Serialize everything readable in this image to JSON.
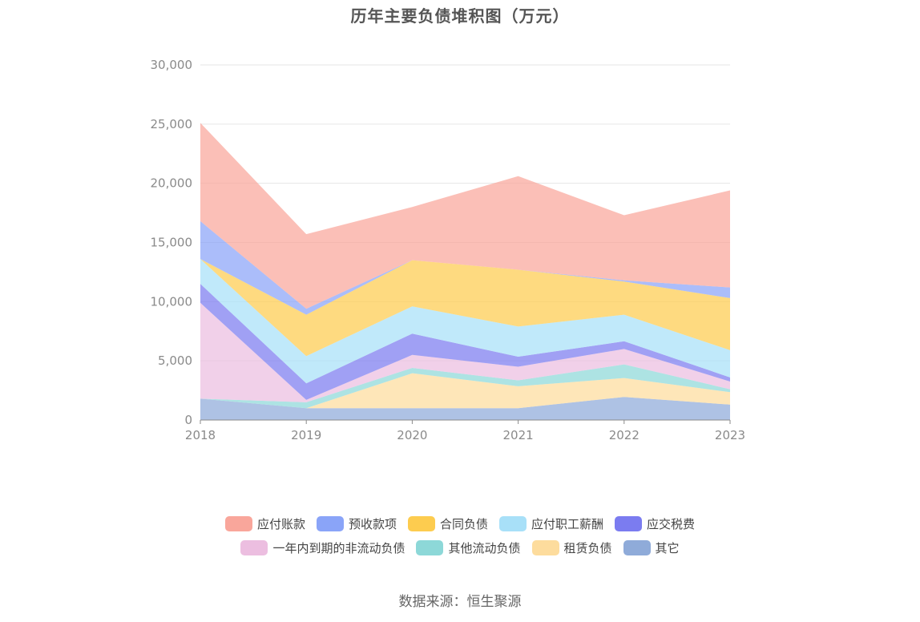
{
  "chart_data": {
    "type": "area",
    "stacked": true,
    "title": "历年主要负债堆积图（万元）",
    "categories": [
      "2018",
      "2019",
      "2020",
      "2021",
      "2022",
      "2023"
    ],
    "ylim": [
      0,
      30000
    ],
    "yticks": [
      0,
      5000,
      10000,
      15000,
      20000,
      25000,
      30000
    ],
    "ytick_labels": [
      "0",
      "5,000",
      "10,000",
      "15,000",
      "20,000",
      "25,000",
      "30,000"
    ],
    "grid": true,
    "legend_position": "bottom",
    "series": [
      {
        "name": "其它",
        "color": "#8fabd9",
        "values": [
          1800,
          1000,
          1000,
          1000,
          1950,
          1300
        ]
      },
      {
        "name": "租赁负债",
        "color": "#fddc9d",
        "values": [
          0,
          0,
          2950,
          1850,
          1600,
          1050
        ]
      },
      {
        "name": "其他流动负债",
        "color": "#8dd8d8",
        "values": [
          0,
          500,
          450,
          500,
          1150,
          250
        ]
      },
      {
        "name": "一年内到期的非流动负债",
        "color": "#ecbee0",
        "values": [
          8100,
          200,
          1100,
          1150,
          1300,
          650
        ]
      },
      {
        "name": "应交税费",
        "color": "#7b7cf0",
        "values": [
          1600,
          1400,
          1800,
          850,
          650,
          350
        ]
      },
      {
        "name": "应付职工薪酬",
        "color": "#a8e0f8",
        "values": [
          2100,
          2300,
          2300,
          2550,
          2250,
          2300
        ]
      },
      {
        "name": "合同负债",
        "color": "#fdcc4f",
        "values": [
          0,
          3500,
          3900,
          4800,
          2800,
          4400
        ]
      },
      {
        "name": "预收款项",
        "color": "#8aa4f8",
        "values": [
          3200,
          500,
          0,
          0,
          100,
          900
        ]
      },
      {
        "name": "应付账款",
        "color": "#f9a69b",
        "values": [
          8300,
          6300,
          4500,
          7900,
          5500,
          8200
        ]
      }
    ],
    "legend_order": [
      "应付账款",
      "预收款项",
      "合同负债",
      "应付职工薪酬",
      "应交税费",
      "一年内到期的非流动负债",
      "其他流动负债",
      "租赁负债",
      "其它"
    ]
  },
  "source_text": "数据来源：恒生聚源"
}
